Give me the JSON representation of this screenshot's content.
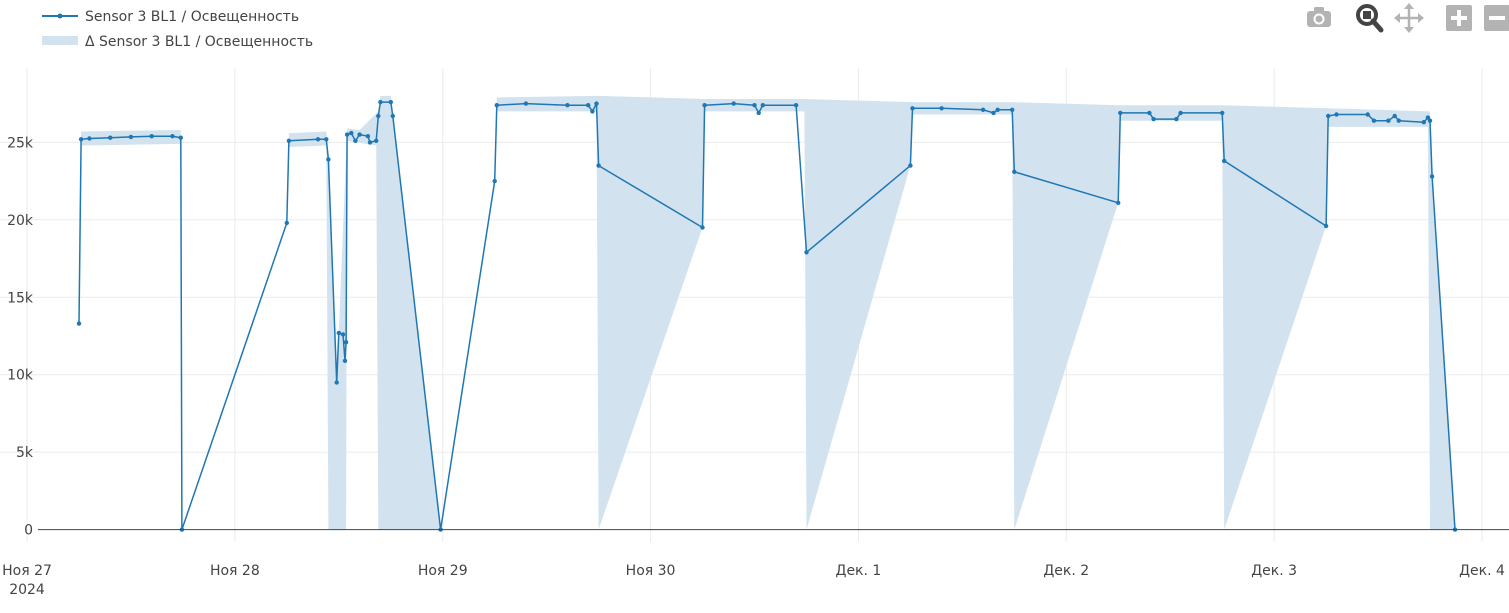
{
  "legend": {
    "line_label": "Sensor 3 BL1 / Освещенность",
    "band_label": "Δ Sensor 3 BL1 / Освещенность"
  },
  "toolbar": {
    "camera": "camera-icon",
    "zoom": "zoom-icon",
    "pan": "pan-icon",
    "zoom_in": "zoom-in-icon",
    "zoom_out": "zoom-out-icon",
    "autoscale": "autoscale-icon"
  },
  "colors": {
    "line": "#1f77b4",
    "band": "#d2e3ef",
    "grid": "#ebebeb",
    "axis_zero": "#444444",
    "toolbar_icon": "#b3b3b3",
    "toolbar_active": "#444444"
  },
  "chart_data": {
    "type": "line",
    "x_unit": "days from Ноя 27 2024 00:00",
    "xlim": [
      -0.13,
      7.13
    ],
    "ylim": [
      -800,
      29800
    ],
    "x_ticks": [
      {
        "x": 0,
        "label": "Ноя 27",
        "sub": "2024"
      },
      {
        "x": 1,
        "label": "Ноя 28"
      },
      {
        "x": 2,
        "label": "Ноя 29"
      },
      {
        "x": 3,
        "label": "Ноя 30"
      },
      {
        "x": 4,
        "label": "Дек. 1"
      },
      {
        "x": 5,
        "label": "Дек. 2"
      },
      {
        "x": 6,
        "label": "Дек. 3"
      },
      {
        "x": 7,
        "label": "Дек. 4"
      }
    ],
    "y_ticks": [
      {
        "y": 0,
        "label": "0"
      },
      {
        "y": 5000,
        "label": "5k"
      },
      {
        "y": 10000,
        "label": "10k"
      },
      {
        "y": 15000,
        "label": "15k"
      },
      {
        "y": 20000,
        "label": "20k"
      },
      {
        "y": 25000,
        "label": "25k"
      }
    ],
    "grid": true,
    "legend_position": "top-left",
    "series": [
      {
        "name": "Sensor 3 BL1 / Освещенность",
        "kind": "line+markers",
        "points": [
          [
            0.25,
            13300
          ],
          [
            0.26,
            25200
          ],
          [
            0.3,
            25250
          ],
          [
            0.4,
            25300
          ],
          [
            0.5,
            25350
          ],
          [
            0.6,
            25400
          ],
          [
            0.7,
            25400
          ],
          [
            0.74,
            25300
          ],
          [
            0.745,
            0
          ],
          [
            1.25,
            19800
          ],
          [
            1.26,
            25100
          ],
          [
            1.4,
            25200
          ],
          [
            1.44,
            25200
          ],
          [
            1.45,
            23900
          ],
          [
            1.49,
            9500
          ],
          [
            1.5,
            12700
          ],
          [
            1.52,
            12600
          ],
          [
            1.53,
            10900
          ],
          [
            1.535,
            12100
          ],
          [
            1.54,
            25500
          ],
          [
            1.56,
            25600
          ],
          [
            1.58,
            25100
          ],
          [
            1.6,
            25500
          ],
          [
            1.64,
            25400
          ],
          [
            1.65,
            25000
          ],
          [
            1.68,
            25100
          ],
          [
            1.69,
            26700
          ],
          [
            1.7,
            27600
          ],
          [
            1.75,
            27600
          ],
          [
            1.76,
            26700
          ],
          [
            1.99,
            0
          ],
          [
            2.25,
            22500
          ],
          [
            2.26,
            27400
          ],
          [
            2.4,
            27500
          ],
          [
            2.6,
            27400
          ],
          [
            2.7,
            27400
          ],
          [
            2.72,
            27000
          ],
          [
            2.74,
            27500
          ],
          [
            2.75,
            23500
          ],
          [
            3.25,
            19500
          ],
          [
            3.26,
            27400
          ],
          [
            3.4,
            27500
          ],
          [
            3.5,
            27400
          ],
          [
            3.52,
            26900
          ],
          [
            3.54,
            27400
          ],
          [
            3.7,
            27400
          ],
          [
            3.75,
            17900
          ],
          [
            4.25,
            23500
          ],
          [
            4.26,
            27200
          ],
          [
            4.4,
            27200
          ],
          [
            4.6,
            27100
          ],
          [
            4.65,
            26900
          ],
          [
            4.67,
            27100
          ],
          [
            4.74,
            27100
          ],
          [
            4.75,
            23100
          ],
          [
            5.25,
            21100
          ],
          [
            5.26,
            26900
          ],
          [
            5.4,
            26900
          ],
          [
            5.42,
            26500
          ],
          [
            5.53,
            26500
          ],
          [
            5.55,
            26900
          ],
          [
            5.75,
            26900
          ],
          [
            5.76,
            23800
          ],
          [
            6.25,
            19600
          ],
          [
            6.26,
            26700
          ],
          [
            6.3,
            26800
          ],
          [
            6.45,
            26800
          ],
          [
            6.48,
            26400
          ],
          [
            6.55,
            26400
          ],
          [
            6.58,
            26700
          ],
          [
            6.6,
            26400
          ],
          [
            6.72,
            26300
          ],
          [
            6.74,
            26600
          ],
          [
            6.75,
            26400
          ],
          [
            6.76,
            22800
          ],
          [
            6.87,
            0
          ]
        ]
      },
      {
        "name": "Δ Sensor 3 BL1 / Освещенность",
        "kind": "band",
        "upper": [
          [
            0.25,
            13300
          ],
          [
            0.26,
            25700
          ],
          [
            0.74,
            25800
          ],
          [
            0.745,
            0
          ],
          [
            1.25,
            19800
          ],
          [
            1.26,
            25600
          ],
          [
            1.44,
            25700
          ],
          [
            1.45,
            24300
          ],
          [
            1.49,
            9500
          ],
          [
            1.5,
            12700
          ],
          [
            1.54,
            25900
          ],
          [
            1.6,
            25800
          ],
          [
            1.69,
            27000
          ],
          [
            1.7,
            28000
          ],
          [
            1.75,
            28000
          ],
          [
            1.99,
            0
          ],
          [
            2.25,
            22500
          ],
          [
            2.26,
            27900
          ],
          [
            2.74,
            28000
          ],
          [
            2.76,
            28000
          ],
          [
            3.26,
            27800
          ],
          [
            3.54,
            27800
          ],
          [
            3.74,
            27800
          ],
          [
            4.26,
            27600
          ],
          [
            4.74,
            27600
          ],
          [
            5.26,
            27400
          ],
          [
            5.75,
            27400
          ],
          [
            6.26,
            27200
          ],
          [
            6.75,
            27000
          ],
          [
            6.76,
            22800
          ],
          [
            6.87,
            0
          ]
        ],
        "lower": [
          [
            0.25,
            13300
          ],
          [
            0.26,
            24800
          ],
          [
            0.74,
            24900
          ],
          [
            0.745,
            0
          ],
          [
            1.25,
            19800
          ],
          [
            1.26,
            24700
          ],
          [
            1.44,
            24800
          ],
          [
            1.45,
            0
          ],
          [
            1.49,
            0
          ],
          [
            1.52,
            0
          ],
          [
            1.535,
            0
          ],
          [
            1.54,
            25100
          ],
          [
            1.68,
            24800
          ],
          [
            1.69,
            0
          ],
          [
            1.75,
            0
          ],
          [
            1.99,
            0
          ],
          [
            2.25,
            22500
          ],
          [
            2.26,
            27000
          ],
          [
            2.74,
            27000
          ],
          [
            2.75,
            0
          ],
          [
            3.25,
            19500
          ],
          [
            3.26,
            27000
          ],
          [
            3.74,
            27000
          ],
          [
            3.75,
            0
          ],
          [
            4.25,
            23500
          ],
          [
            4.26,
            26800
          ],
          [
            4.74,
            26800
          ],
          [
            4.75,
            0
          ],
          [
            5.25,
            21100
          ],
          [
            5.26,
            26400
          ],
          [
            5.75,
            26400
          ],
          [
            5.76,
            0
          ],
          [
            6.25,
            19600
          ],
          [
            6.26,
            26000
          ],
          [
            6.74,
            26000
          ],
          [
            6.75,
            0
          ],
          [
            6.87,
            0
          ]
        ]
      }
    ]
  }
}
